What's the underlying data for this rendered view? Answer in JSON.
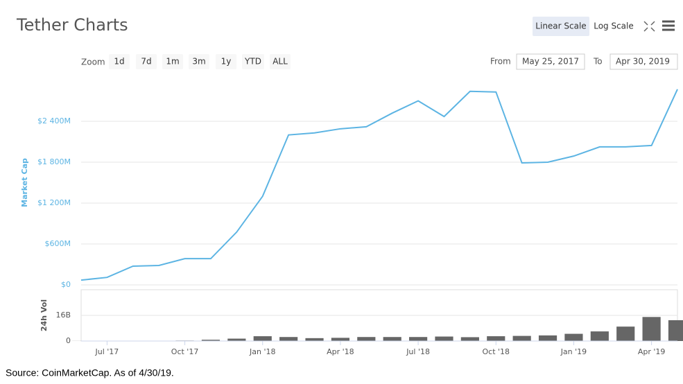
{
  "header": {
    "title": "Tether Charts",
    "scale_buttons": [
      "Linear Scale",
      "Log Scale"
    ]
  },
  "zoom": {
    "label": "Zoom",
    "buttons": [
      "1d",
      "7d",
      "1m",
      "3m",
      "1y",
      "YTD",
      "ALL"
    ]
  },
  "range": {
    "from_label": "From",
    "from": "May 25, 2017",
    "to_label": "To",
    "to": "Apr 30, 2019"
  },
  "footnote": "Source:  CoinMarketCap.  As  of  4/30/19.",
  "chart_data": [
    {
      "type": "line",
      "y_label": "Market Cap",
      "color": "#5cb4e3",
      "x": [
        "2017-06",
        "2017-07",
        "2017-08",
        "2017-09",
        "2017-10",
        "2017-11",
        "2017-12",
        "2018-01",
        "2018-02",
        "2018-03",
        "2018-04",
        "2018-05",
        "2018-06",
        "2018-07",
        "2018-08",
        "2018-09",
        "2018-10",
        "2018-11",
        "2018-12",
        "2019-01",
        "2019-02",
        "2019-03",
        "2019-04",
        "2019-05"
      ],
      "values": [
        70,
        110,
        275,
        285,
        385,
        385,
        775,
        1300,
        2200,
        2230,
        2290,
        2320,
        2520,
        2700,
        2470,
        2840,
        2830,
        1790,
        1800,
        1890,
        2025,
        2025,
        2045,
        2870
      ],
      "xlim": [
        "2017-06",
        "2019-05"
      ],
      "ylim": [
        0,
        3000
      ],
      "yticks": [
        {
          "value": 0,
          "label": "$0"
        },
        {
          "value": 600,
          "label": "$600M"
        },
        {
          "value": 1200,
          "label": "$1 200M"
        },
        {
          "value": 1800,
          "label": "$1 800M"
        },
        {
          "value": 2400,
          "label": "$2 400M"
        }
      ],
      "grid": true
    },
    {
      "type": "bar",
      "y_label": "24h Vol",
      "color": "#666666",
      "x": [
        "2017-06",
        "2017-07",
        "2017-08",
        "2017-09",
        "2017-10",
        "2017-11",
        "2017-12",
        "2018-01",
        "2018-02",
        "2018-03",
        "2018-04",
        "2018-05",
        "2018-06",
        "2018-07",
        "2018-08",
        "2018-09",
        "2018-10",
        "2018-11",
        "2018-12",
        "2019-01",
        "2019-02",
        "2019-03",
        "2019-04",
        "2019-05"
      ],
      "values": [
        0.05,
        0.1,
        0.15,
        0.2,
        0.3,
        0.8,
        1.5,
        3,
        2.5,
        1.8,
        2,
        2.5,
        2.5,
        2.5,
        2.8,
        2.4,
        3,
        3.2,
        3.5,
        4.5,
        6,
        9,
        15,
        13
      ],
      "xlim": [
        "2017-06",
        "2019-05"
      ],
      "ylim": [
        0,
        32
      ],
      "yticks": [
        0,
        {
          "value": 16,
          "label": "16B"
        }
      ],
      "xticks": [
        {
          "value": "2017-07",
          "label": "Jul '17"
        },
        {
          "value": "2017-10",
          "label": "Oct '17"
        },
        {
          "value": "2018-01",
          "label": "Jan '18"
        },
        {
          "value": "2018-04",
          "label": "Apr '18"
        },
        {
          "value": "2018-07",
          "label": "Jul '18"
        },
        {
          "value": "2018-10",
          "label": "Oct '18"
        },
        {
          "value": "2019-01",
          "label": "Jan '19"
        },
        {
          "value": "2019-04",
          "label": "Apr '19"
        }
      ],
      "grid": true
    }
  ]
}
